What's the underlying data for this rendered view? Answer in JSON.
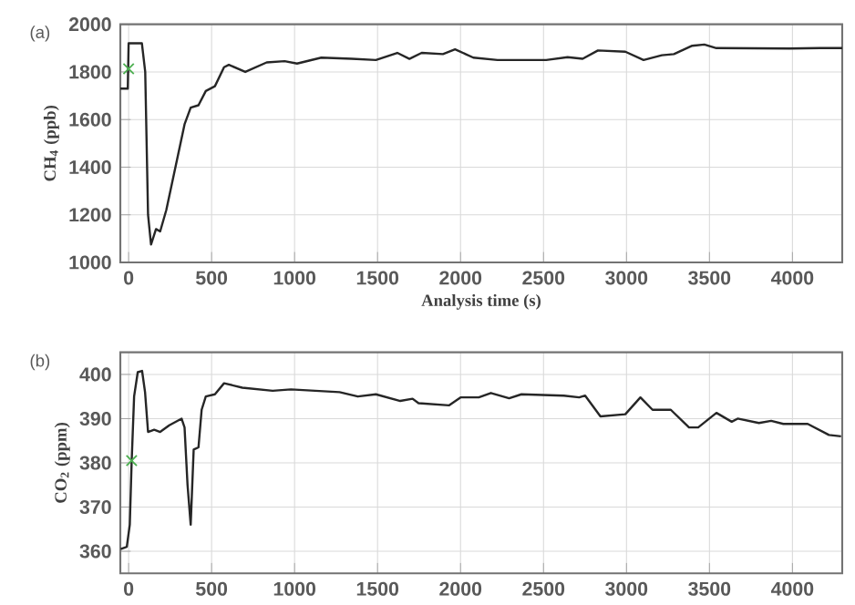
{
  "chart_data": [
    {
      "type": "line",
      "xlabel": "Analysis time (s)",
      "ylabel": "CH$_{4}$ (ppb)",
      "annotations": [
        "(a)"
      ],
      "xlim": [
        -50,
        4300
      ],
      "ylim": [
        1000,
        2000
      ],
      "xticks": [
        0,
        500,
        1000,
        1500,
        2000,
        2500,
        3000,
        3500,
        4000
      ],
      "yticks": [
        1000,
        1200,
        1400,
        1600,
        1800,
        2000
      ],
      "grid": true,
      "series": [
        {
          "color": "#262626",
          "marker": "none",
          "line_style": "solid",
          "x": [
            -50,
            -5,
            0,
            20,
            80,
            100,
            117,
            135,
            165,
            190,
            227,
            282,
            337,
            374,
            421,
            465,
            520,
            575,
            604,
            703,
            832,
            940,
            1015,
            1161,
            1344,
            1490,
            1619,
            1692,
            1766,
            1894,
            1967,
            2077,
            2223,
            2516,
            2645,
            2736,
            2828,
            2993,
            3103,
            3213,
            3286,
            3396,
            3469,
            3542,
            3982,
            4165,
            4300
          ],
          "values": [
            1730,
            1730,
            1920,
            1920,
            1920,
            1800,
            1200,
            1075,
            1140,
            1130,
            1220,
            1400,
            1580,
            1650,
            1660,
            1720,
            1740,
            1820,
            1830,
            1800,
            1840,
            1845,
            1835,
            1860,
            1855,
            1850,
            1880,
            1855,
            1880,
            1875,
            1895,
            1860,
            1850,
            1850,
            1862,
            1855,
            1890,
            1885,
            1850,
            1870,
            1875,
            1910,
            1915,
            1900,
            1898,
            1900,
            1900
          ]
        },
        {
          "type": "scatter",
          "color": "#4caf50",
          "marker": "cross",
          "x": [
            0
          ],
          "values": [
            1813
          ]
        }
      ]
    },
    {
      "type": "line",
      "ylabel": "CO$_{2}$ (ppm)",
      "annotations": [
        "(b)"
      ],
      "xlim": [
        -50,
        4300
      ],
      "ylim": [
        355,
        405
      ],
      "xticks": [
        0,
        500,
        1000,
        1500,
        2000,
        2500,
        3000,
        3500,
        4000
      ],
      "yticks": [
        360,
        370,
        380,
        390,
        400
      ],
      "grid": true,
      "series": [
        {
          "color": "#262626",
          "marker": "none",
          "line_style": "solid",
          "x": [
            -48,
            -11,
            7,
            18,
            33,
            55,
            81,
            99,
            117,
            154,
            190,
            245,
            319,
            337,
            355,
            374,
            392,
            421,
            440,
            465,
            520,
            575,
            685,
            868,
            978,
            1271,
            1381,
            1490,
            1637,
            1711,
            1747,
            1930,
            2000,
            2110,
            2183,
            2293,
            2367,
            2623,
            2715,
            2751,
            2843,
            2993,
            3084,
            3157,
            3267,
            3377,
            3432,
            3542,
            3634,
            3670,
            3798,
            3872,
            3945,
            4092,
            4220,
            4293
          ],
          "values": [
            360.5,
            361,
            366,
            380,
            395,
            400.5,
            400.8,
            396,
            387,
            387.5,
            387,
            388.5,
            390,
            388,
            375,
            366,
            383,
            383.5,
            392,
            395,
            395.5,
            398,
            397,
            396.3,
            396.6,
            396,
            395,
            395.5,
            394,
            394.5,
            393.5,
            393,
            394.8,
            394.8,
            395.8,
            394.6,
            395.5,
            395.2,
            394.8,
            395.2,
            390.5,
            391,
            394.8,
            392,
            392,
            388,
            388,
            391.3,
            389.3,
            390,
            389,
            389.5,
            388.8,
            388.8,
            386.3,
            386
          ]
        },
        {
          "type": "scatter",
          "color": "#4caf50",
          "marker": "cross",
          "x": [
            18
          ],
          "values": [
            380.5
          ]
        }
      ]
    }
  ]
}
